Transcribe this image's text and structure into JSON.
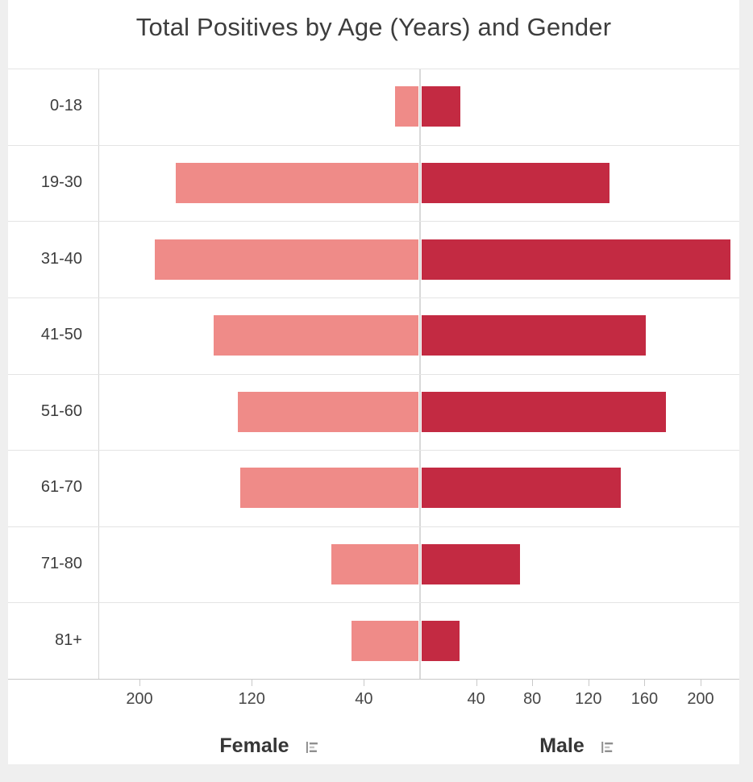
{
  "title": "Total Positives by Age (Years) and Gender",
  "chart_data": {
    "type": "bar",
    "variant": "population-pyramid",
    "title": "Total Positives by Age (Years) and Gender",
    "categories": [
      "0-18",
      "19-30",
      "31-40",
      "41-50",
      "51-60",
      "61-70",
      "71-80",
      "81+"
    ],
    "series": [
      {
        "name": "Female",
        "color": "#ef8b88",
        "values": [
          18,
          174,
          189,
          147,
          130,
          128,
          63,
          49
        ]
      },
      {
        "name": "Male",
        "color": "#c32a42",
        "values": [
          29,
          135,
          221,
          161,
          175,
          143,
          71,
          28
        ]
      }
    ],
    "x_axis": {
      "left_tick_values": [
        200,
        120,
        40
      ],
      "left_tick_labels": [
        "200",
        "120",
        "40"
      ],
      "right_tick_values": [
        40,
        80,
        120,
        160,
        200
      ],
      "right_tick_labels": [
        "40",
        "80",
        "120",
        "160",
        "200"
      ],
      "limit": 230,
      "grid": "row-separators-and-center-line"
    },
    "axis_titles": {
      "left": "Female",
      "right": "Male"
    },
    "legend_position": "none"
  },
  "icons": {
    "female_axis_icon": "sort-lines-icon",
    "male_axis_icon": "sort-lines-icon"
  },
  "colors": {
    "female_bar": "#ef8b88",
    "male_bar": "#c32a42",
    "row_separator": "#e4e4e4",
    "axis_line": "#c9c9c9",
    "center_line": "#d9d9d9",
    "plot_border": "#d6d6d6",
    "text": "#3d3d3d",
    "icon_gray": "#8f8f8f",
    "page_background": "#efefef",
    "card_background": "#ffffff"
  }
}
